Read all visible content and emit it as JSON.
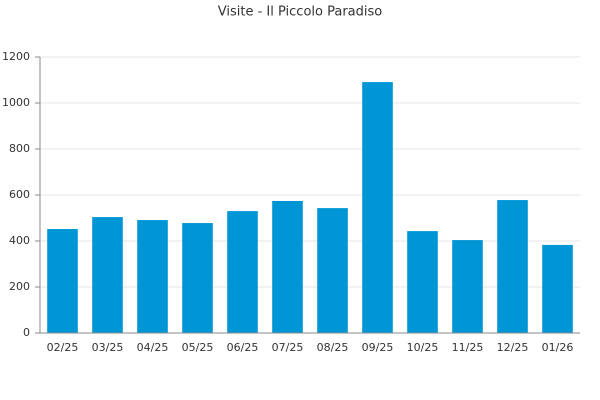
{
  "chart_data": {
    "type": "bar",
    "title": "Visite - Il Piccolo Paradiso",
    "categories": [
      "02/25",
      "03/25",
      "04/25",
      "05/25",
      "06/25",
      "07/25",
      "08/25",
      "09/25",
      "10/25",
      "11/25",
      "12/25",
      "01/26"
    ],
    "values": [
      452,
      504,
      491,
      478,
      530,
      574,
      543,
      1091,
      443,
      404,
      578,
      383
    ],
    "color": "#0096d6",
    "ylim": [
      0,
      1200
    ],
    "yticks": [
      0,
      200,
      400,
      600,
      800,
      1000,
      1200
    ],
    "grid": true
  }
}
